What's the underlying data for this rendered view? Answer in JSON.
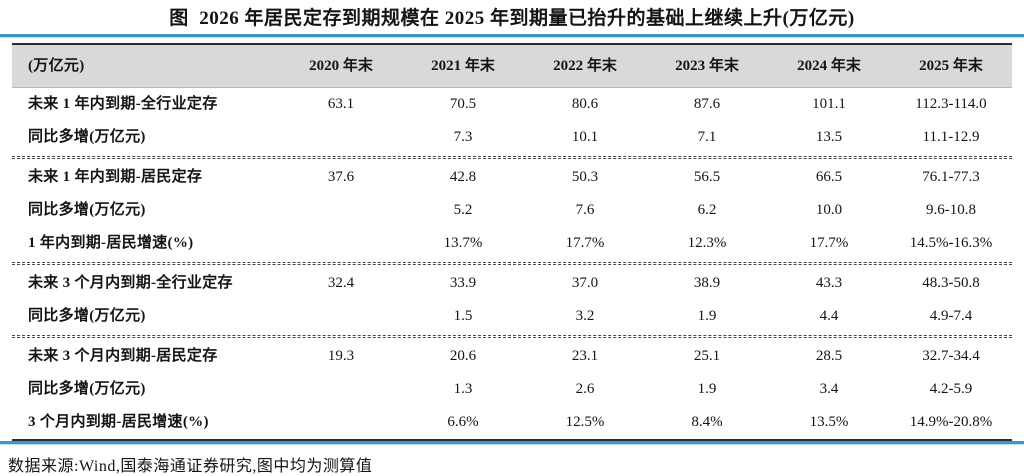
{
  "title": "图  2026 年居民定存到期规模在 2025 年到期量已抬升的基础上继续上升(万亿元)",
  "footer": "数据来源:Wind,国泰海通证券研究,图中均为测算值",
  "colors": {
    "accent_blue": "#3f96c8",
    "header_bg": "#d9d9d9",
    "border_dark": "#2b2b2b"
  },
  "chart_data": {
    "type": "table",
    "title": "图 2026 年居民定存到期规模在 2025 年到期量已抬升的基础上继续上升(万亿元)",
    "columns": [
      "(万亿元)",
      "2020 年末",
      "2021 年末",
      "2022 年末",
      "2023 年末",
      "2024 年末",
      "2025 年末"
    ],
    "rows": [
      {
        "label": "未来 1 年内到期-全行业定存",
        "values": [
          "63.1",
          "70.5",
          "80.6",
          "87.6",
          "101.1",
          "112.3-114.0"
        ]
      },
      {
        "label": "同比多增(万亿元)",
        "values": [
          "",
          "7.3",
          "10.1",
          "7.1",
          "13.5",
          "11.1-12.9"
        ]
      },
      {
        "label": "未来 1 年内到期-居民定存",
        "values": [
          "37.6",
          "42.8",
          "50.3",
          "56.5",
          "66.5",
          "76.1-77.3"
        ]
      },
      {
        "label": "同比多增(万亿元)",
        "values": [
          "",
          "5.2",
          "7.6",
          "6.2",
          "10.0",
          "9.6-10.8"
        ]
      },
      {
        "label": "1 年内到期-居民增速(%)",
        "values": [
          "",
          "13.7%",
          "17.7%",
          "12.3%",
          "17.7%",
          "14.5%-16.3%"
        ]
      },
      {
        "label": "未来 3 个月内到期-全行业定存",
        "values": [
          "32.4",
          "33.9",
          "37.0",
          "38.9",
          "43.3",
          "48.3-50.8"
        ]
      },
      {
        "label": "同比多增(万亿元)",
        "values": [
          "",
          "1.5",
          "3.2",
          "1.9",
          "4.4",
          "4.9-7.4"
        ]
      },
      {
        "label": "未来 3 个月内到期-居民定存",
        "values": [
          "19.3",
          "20.6",
          "23.1",
          "25.1",
          "28.5",
          "32.7-34.4"
        ]
      },
      {
        "label": "同比多增(万亿元)",
        "values": [
          "",
          "1.3",
          "2.6",
          "1.9",
          "3.4",
          "4.2-5.9"
        ]
      },
      {
        "label": "3 个月内到期-居民增速(%)",
        "values": [
          "",
          "6.6%",
          "12.5%",
          "8.4%",
          "13.5%",
          "14.9%-20.8%"
        ]
      }
    ],
    "source_note": "数据来源:Wind,国泰海通证券研究,图中均为测算值",
    "section_breaks_after_row_index": [
      1,
      4,
      6
    ]
  }
}
